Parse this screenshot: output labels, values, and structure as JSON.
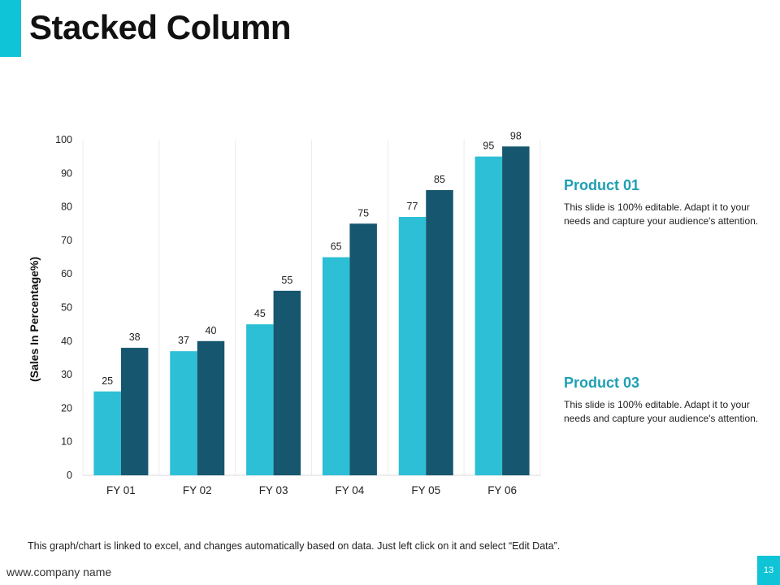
{
  "slide": {
    "title": "Stacked Column",
    "footnote": "This graph/chart is linked to excel,  and changes automatically based on data. Just left click on it and select “Edit Data”.",
    "footer_url": "www.company name",
    "page_number": "13"
  },
  "legend": [
    {
      "title": "Product 01",
      "description": "This slide is 100% editable. Adapt it to your needs and capture your audience's attention."
    },
    {
      "title": "Product 03",
      "description": "This slide is 100% editable. Adapt it to your needs and capture your audience's attention."
    }
  ],
  "colors": {
    "accent": "#0fc4d6",
    "series1": "#2cbfd6",
    "series2": "#17566f",
    "legend_title": "#1e9fb3"
  },
  "chart_data": {
    "type": "bar",
    "title": "",
    "xlabel": "",
    "ylabel": "(Sales In Percentage%)",
    "categories": [
      "FY 01",
      "FY 02",
      "FY 03",
      "FY 04",
      "FY 05",
      "FY 06"
    ],
    "series": [
      {
        "name": "Product 01",
        "values": [
          25,
          37,
          45,
          65,
          77,
          95
        ]
      },
      {
        "name": "Product 03",
        "values": [
          38,
          40,
          55,
          75,
          85,
          98
        ]
      }
    ],
    "ylim": [
      0,
      100
    ],
    "yticks": [
      0,
      10,
      20,
      30,
      40,
      50,
      60,
      70,
      80,
      90,
      100
    ],
    "grid": false,
    "category_separators": true
  }
}
